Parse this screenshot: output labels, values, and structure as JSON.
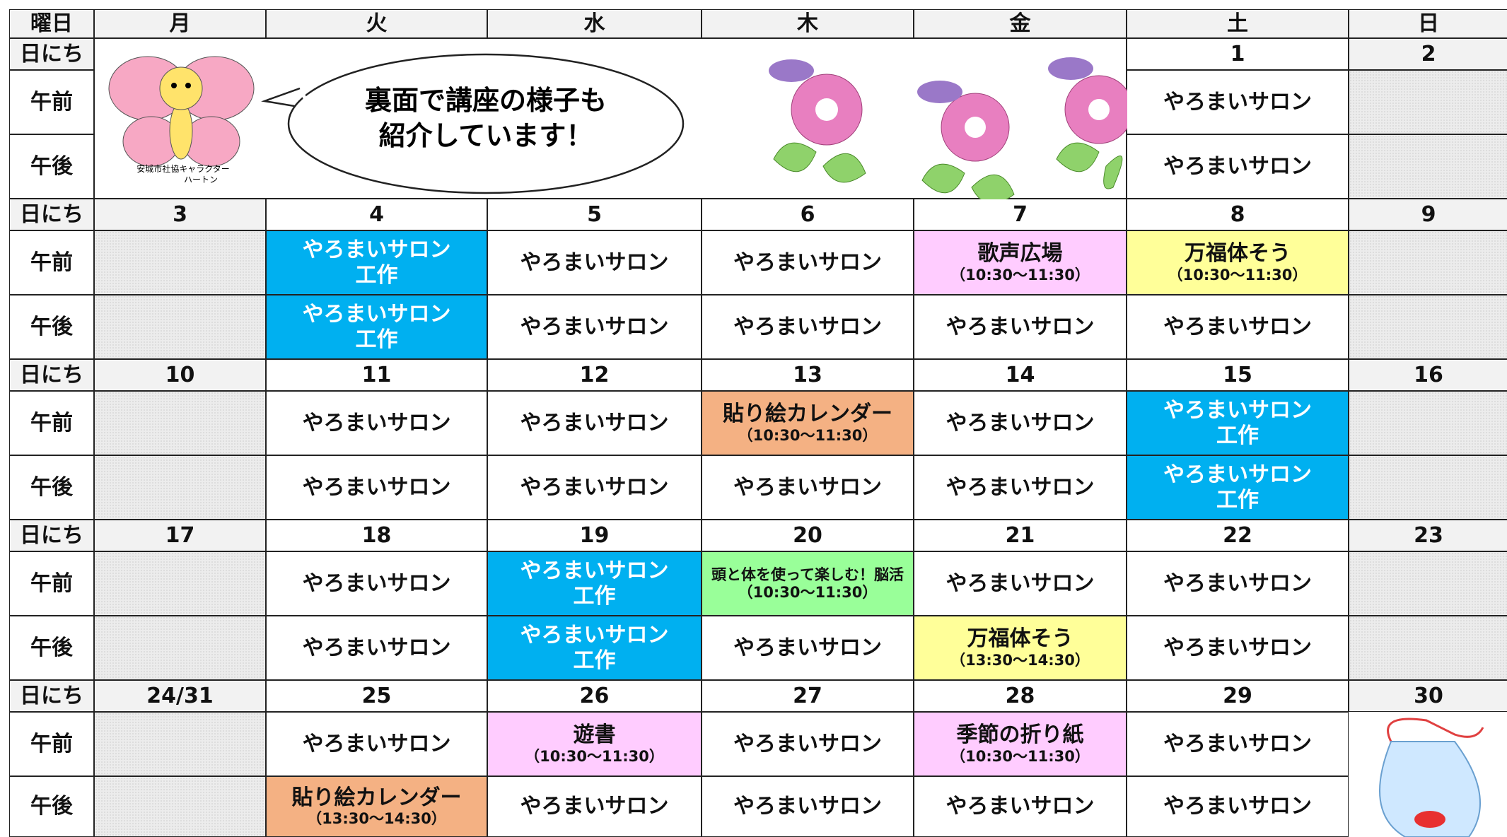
{
  "header": {
    "corner": "曜日",
    "days": [
      "月",
      "火",
      "水",
      "木",
      "金",
      "土",
      "日"
    ]
  },
  "row_labels": {
    "date": "日にち",
    "am": "午前",
    "pm": "午後"
  },
  "banner": {
    "bubble": [
      "裏面で講座の様子も",
      "紹介しています！"
    ],
    "caption": [
      "安城市社協キャラクター",
      "ハートン"
    ]
  },
  "weeks": [
    {
      "dates": [
        null,
        null,
        null,
        null,
        null,
        1,
        2
      ],
      "am": [
        null,
        null,
        null,
        null,
        null,
        {
          "lines": [
            "やろまいサロン"
          ]
        },
        null
      ],
      "pm": [
        null,
        null,
        null,
        null,
        null,
        {
          "lines": [
            "やろまいサロン"
          ]
        },
        null
      ]
    },
    {
      "dates": [
        3,
        4,
        5,
        6,
        7,
        8,
        9
      ],
      "am": [
        null,
        {
          "lines": [
            "やろまいサロン",
            "工作"
          ],
          "fill": "#00b0f0",
          "color": "#ffffff"
        },
        {
          "lines": [
            "やろまいサロン"
          ]
        },
        {
          "lines": [
            "やろまいサロン"
          ]
        },
        {
          "lines": [
            "歌声広場",
            "（10:30〜11:30）"
          ],
          "fill": "#ffccff"
        },
        {
          "lines": [
            "万福体そう",
            "（10:30〜11:30）"
          ],
          "fill": "#ffff99"
        },
        null
      ],
      "pm": [
        null,
        {
          "lines": [
            "やろまいサロン",
            "工作"
          ],
          "fill": "#00b0f0",
          "color": "#ffffff"
        },
        {
          "lines": [
            "やろまいサロン"
          ]
        },
        {
          "lines": [
            "やろまいサロン"
          ]
        },
        {
          "lines": [
            "やろまいサロン"
          ]
        },
        {
          "lines": [
            "やろまいサロン"
          ]
        },
        null
      ]
    },
    {
      "dates": [
        10,
        11,
        12,
        13,
        14,
        15,
        16
      ],
      "am": [
        null,
        {
          "lines": [
            "やろまいサロン"
          ]
        },
        {
          "lines": [
            "やろまいサロン"
          ]
        },
        {
          "lines": [
            "貼り絵カレンダー",
            "（10:30〜11:30）"
          ],
          "fill": "#f4b183"
        },
        {
          "lines": [
            "やろまいサロン"
          ]
        },
        {
          "lines": [
            "やろまいサロン",
            "工作"
          ],
          "fill": "#00b0f0",
          "color": "#ffffff"
        },
        null
      ],
      "pm": [
        null,
        {
          "lines": [
            "やろまいサロン"
          ]
        },
        {
          "lines": [
            "やろまいサロン"
          ]
        },
        {
          "lines": [
            "やろまいサロン"
          ]
        },
        {
          "lines": [
            "やろまいサロン"
          ]
        },
        {
          "lines": [
            "やろまいサロン",
            "工作"
          ],
          "fill": "#00b0f0",
          "color": "#ffffff"
        },
        null
      ]
    },
    {
      "dates": [
        17,
        18,
        19,
        20,
        21,
        22,
        23
      ],
      "am": [
        null,
        {
          "lines": [
            "やろまいサロン"
          ]
        },
        {
          "lines": [
            "やろまいサロン",
            "工作"
          ],
          "fill": "#00b0f0",
          "color": "#ffffff"
        },
        {
          "lines": [
            "頭と体を使って楽しむ！脳活",
            "（10:30〜11:30）"
          ],
          "fill": "#99ff99"
        },
        {
          "lines": [
            "やろまいサロン"
          ]
        },
        {
          "lines": [
            "やろまいサロン"
          ]
        },
        null
      ],
      "pm": [
        null,
        {
          "lines": [
            "やろまいサロン"
          ]
        },
        {
          "lines": [
            "やろまいサロン",
            "工作"
          ],
          "fill": "#00b0f0",
          "color": "#ffffff"
        },
        {
          "lines": [
            "やろまいサロン"
          ]
        },
        {
          "lines": [
            "万福体そう",
            "（13:30〜14:30）"
          ],
          "fill": "#ffff99"
        },
        {
          "lines": [
            "やろまいサロン"
          ]
        },
        null
      ]
    },
    {
      "dates": [
        "24/31",
        25,
        26,
        27,
        28,
        29,
        30
      ],
      "am": [
        null,
        {
          "lines": [
            "やろまいサロン"
          ]
        },
        {
          "lines": [
            "遊書",
            "（10:30〜11:30）"
          ],
          "fill": "#ffccff"
        },
        {
          "lines": [
            "やろまいサロン"
          ]
        },
        {
          "lines": [
            "季節の折り紙",
            "（10:30〜11:30）"
          ],
          "fill": "#ffccff"
        },
        {
          "lines": [
            "やろまいサロン"
          ]
        },
        null
      ],
      "pm": [
        null,
        {
          "lines": [
            "貼り絵カレンダー",
            "（13:30〜14:30）"
          ],
          "fill": "#f4b183"
        },
        {
          "lines": [
            "やろまいサロン"
          ]
        },
        {
          "lines": [
            "やろまいサロン"
          ]
        },
        {
          "lines": [
            "やろまいサロン"
          ]
        },
        {
          "lines": [
            "やろまいサロン"
          ]
        },
        null
      ]
    }
  ]
}
